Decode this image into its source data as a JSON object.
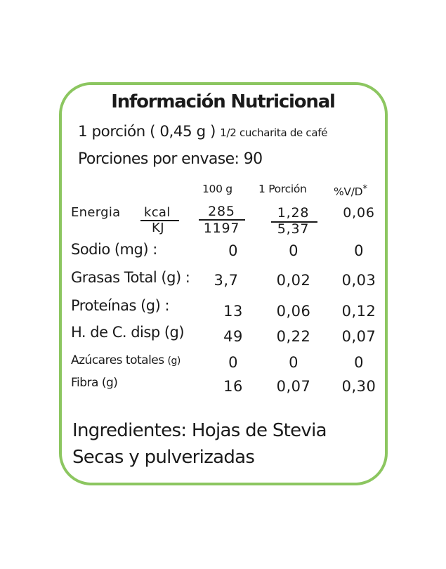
{
  "label": {
    "title": "Información Nutricional",
    "serving_size": "1 porción ( 0,45 g )",
    "serving_note": "1/2 cucharita de café",
    "servings_per_container": "Porciones por envase: 90",
    "columns": [
      "100 g",
      "1 Porción",
      "%V/D"
    ],
    "columns_asterisk": "*",
    "energy": {
      "label": "Energia",
      "unit_kcal": "kcal",
      "unit_kj": "KJ",
      "per100_kcal": "285",
      "per100_kj": "1197",
      "portion_kcal": "1,28",
      "portion_kj": "5,37",
      "dv": "0,06"
    },
    "rows": [
      {
        "label": "Sodio (mg) :",
        "per100": "0",
        "portion": "0",
        "dv": "0"
      },
      {
        "label": "Grasas Total (g) :",
        "per100": "3,7",
        "portion": "0,02",
        "dv": "0,03"
      },
      {
        "label": "Proteínas (g) :",
        "per100": "13",
        "portion": "0,06",
        "dv": "0,12"
      },
      {
        "label": "H. de C. disp (g)",
        "per100": "49",
        "portion": "0,22",
        "dv": "0,07"
      },
      {
        "label": "Azúcares totales",
        "unit": "(g)",
        "per100": "0",
        "portion": "0",
        "dv": "0"
      },
      {
        "label": "Fibra (g)",
        "per100": "16",
        "portion": "0,07",
        "dv": "0,30"
      }
    ],
    "ingredients": "Ingredientes: Hojas de Stevia Secas y pulverizadas"
  },
  "colors": {
    "border": "#8cc660",
    "text": "#1a1a1a"
  }
}
